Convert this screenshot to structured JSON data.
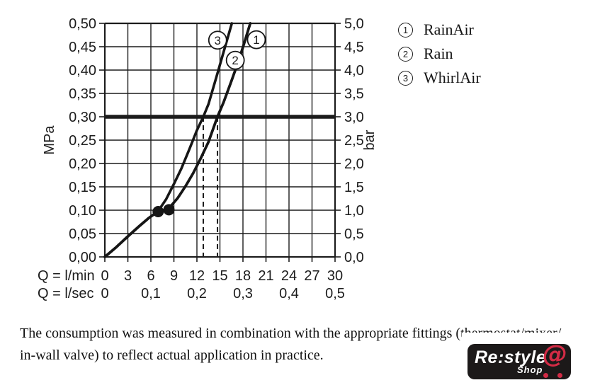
{
  "chart_data": {
    "type": "line",
    "title": "",
    "xlabel": "Q = l/min",
    "xlabel2": "Q = l/sec",
    "ylabel_left": "MPa",
    "ylabel_right": "bar",
    "xlim": [
      0,
      30
    ],
    "ylim_mpa": [
      0,
      0.5
    ],
    "ylim_bar": [
      0,
      5
    ],
    "grid": "on",
    "x_grid_step_lmin": 3,
    "y_grid_step_mpa": 0.05,
    "reference_line_mpa": 0.3,
    "dashed_guides_lmin": [
      12.83,
      14.68
    ],
    "junction_dots": [
      [
        6.95,
        0.097
      ],
      [
        8.35,
        0.101
      ]
    ],
    "series": [
      {
        "name": "RainAir",
        "marker_num": "1",
        "points": [
          [
            0,
            0
          ],
          [
            1.5,
            0.021
          ],
          [
            3,
            0.044
          ],
          [
            4.5,
            0.066
          ],
          [
            5.7,
            0.083
          ],
          [
            6.9,
            0.097
          ],
          [
            8.3,
            0.103
          ],
          [
            9.5,
            0.126
          ],
          [
            10.5,
            0.151
          ],
          [
            11.5,
            0.179
          ],
          [
            12.5,
            0.211
          ],
          [
            13.5,
            0.246
          ],
          [
            14.68,
            0.3
          ],
          [
            15.5,
            0.332
          ],
          [
            16.5,
            0.377
          ],
          [
            17.5,
            0.423
          ],
          [
            18.3,
            0.465
          ],
          [
            18.95,
            0.5
          ]
        ]
      },
      {
        "name": "Rain",
        "marker_num": "2",
        "points": [
          [
            0,
            0
          ],
          [
            1.5,
            0.021
          ],
          [
            3,
            0.044
          ],
          [
            4.5,
            0.066
          ],
          [
            5.7,
            0.083
          ],
          [
            6.9,
            0.097
          ],
          [
            8.3,
            0.103
          ],
          [
            9.5,
            0.126
          ],
          [
            10.5,
            0.151
          ],
          [
            11.5,
            0.179
          ],
          [
            12.5,
            0.211
          ],
          [
            13.5,
            0.246
          ],
          [
            14.68,
            0.3
          ],
          [
            15.5,
            0.332
          ],
          [
            16.5,
            0.377
          ],
          [
            17.5,
            0.423
          ],
          [
            18.3,
            0.465
          ],
          [
            18.95,
            0.5
          ]
        ]
      },
      {
        "name": "WhirlAir",
        "marker_num": "3",
        "points": [
          [
            0,
            0
          ],
          [
            1.5,
            0.021
          ],
          [
            3,
            0.044
          ],
          [
            4.5,
            0.066
          ],
          [
            5.7,
            0.083
          ],
          [
            6.9,
            0.097
          ],
          [
            8,
            0.124
          ],
          [
            9,
            0.156
          ],
          [
            10,
            0.19
          ],
          [
            11,
            0.23
          ],
          [
            12,
            0.271
          ],
          [
            12.83,
            0.3
          ],
          [
            13.5,
            0.327
          ],
          [
            14.5,
            0.383
          ],
          [
            15.5,
            0.44
          ],
          [
            16.2,
            0.48
          ],
          [
            16.55,
            0.5
          ]
        ]
      }
    ],
    "curve_labels": [
      {
        "num": "1",
        "q": 19.75,
        "mpa": 0.465
      },
      {
        "num": "2",
        "q": 17.0,
        "mpa": 0.421
      },
      {
        "num": "3",
        "q": 14.7,
        "mpa": 0.464
      }
    ],
    "y_ticks_left": [
      "0,00",
      "0,05",
      "0,10",
      "0,15",
      "0,20",
      "0,25",
      "0,30",
      "0,35",
      "0,40",
      "0,45",
      "0,50"
    ],
    "y_ticks_right": [
      "0,0",
      "0,5",
      "1,0",
      "1,5",
      "2,0",
      "2,5",
      "3,0",
      "3,5",
      "4,0",
      "4,5",
      "5,0"
    ],
    "x_ticks_lmin": [
      "0",
      "3",
      "6",
      "9",
      "12",
      "15",
      "18",
      "21",
      "24",
      "27",
      "30"
    ],
    "x_ticks_lsec": [
      {
        "label": "0",
        "q": 0
      },
      {
        "label": "0,1",
        "q": 6
      },
      {
        "label": "0,2",
        "q": 12
      },
      {
        "label": "0,3",
        "q": 18
      },
      {
        "label": "0,4",
        "q": 24
      },
      {
        "label": "0,5",
        "q": 30
      }
    ]
  },
  "legend": {
    "items": [
      {
        "num": "1",
        "label": "RainAir"
      },
      {
        "num": "2",
        "label": "Rain"
      },
      {
        "num": "3",
        "label": "WhirlAir"
      }
    ]
  },
  "caption": {
    "line1": "The consumption was measured in combination with the appropriate fittings (thermostat/mixer/",
    "line2": "in-wall valve) to reflect actual application in practice."
  },
  "logo": {
    "brand": "Re:style",
    "sub": "Shop",
    "at_symbol": "@",
    "bg_color": "#1c1919",
    "accent_color": "#d22b45",
    "text_color": "#ffffff"
  },
  "colors": {
    "ink": "#1c1c1c",
    "background": "#ffffff"
  }
}
